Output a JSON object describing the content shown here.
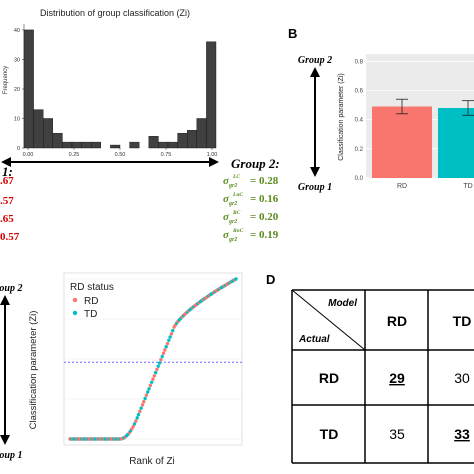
{
  "panel_letters": {
    "b": "B",
    "d": "D"
  },
  "panel_a": {
    "left_fragments": {
      "heading": "1:",
      "vals": [
        ".67",
        ".57",
        ".65",
        "0.57"
      ]
    },
    "group2": {
      "heading": "Group 2:",
      "rows": [
        {
          "sup": "LC",
          "val": "= 0.28"
        },
        {
          "sup": "LnC",
          "val": "= 0.16"
        },
        {
          "sup": "RC",
          "val": "= 0.20"
        },
        {
          "sup": "RnC",
          "val": "= 0.19"
        }
      ]
    },
    "colors": {
      "red_text": "#d40000",
      "green_text": "#5a8c1c",
      "bar": "#404040"
    }
  },
  "panel_b": {
    "group2_label": "Group 2",
    "group1_label": "Group 1",
    "colors": {
      "rd": "#f8766d",
      "td": "#00bfc4",
      "panel_bg": "#ebebeb"
    }
  },
  "panel_c": {
    "group2_label": "roup 2",
    "group1_label": "roup 1",
    "legend_title": "RD status",
    "legend_items": [
      "RD",
      "TD"
    ],
    "threshold": 0.48,
    "colors": {
      "rd": "#f8766d",
      "td": "#00bfc4",
      "threshold": "#6a6aff"
    }
  },
  "panel_d": {
    "header_model": "Model",
    "header_actual": "Actual",
    "col_labels": [
      "RD",
      "TD"
    ],
    "rows": [
      {
        "label": "RD",
        "cells": [
          "29",
          "30"
        ]
      },
      {
        "label": "TD",
        "cells": [
          "35",
          "33"
        ]
      }
    ],
    "underlined": [
      "0-0",
      "1-1"
    ]
  },
  "chart_data": [
    {
      "type": "bar",
      "title": "Distribution of group classification (Zi)",
      "xlabel": "",
      "ylabel": "Frequency",
      "categories": [
        "0.00",
        "0.05",
        "0.10",
        "0.15",
        "0.20",
        "0.25",
        "0.30",
        "0.35",
        "0.40",
        "0.45",
        "0.50",
        "0.55",
        "0.60",
        "0.65",
        "0.70",
        "0.75",
        "0.80",
        "0.85",
        "0.90",
        "0.95"
      ],
      "values": [
        40,
        13,
        10,
        5,
        2,
        2,
        2,
        2,
        0,
        1,
        0,
        2,
        0,
        4,
        2,
        2,
        5,
        6,
        10,
        36
      ],
      "xticks": [
        "0.00",
        "0.25",
        "0.50",
        "0.75",
        "1.00"
      ],
      "yticks": [
        "0",
        "10",
        "20",
        "30",
        "40"
      ],
      "ylim": [
        0,
        42
      ]
    },
    {
      "type": "bar",
      "title": "",
      "xlabel": "",
      "ylabel": "Classification parameter (Zi)",
      "categories": [
        "RD",
        "TD"
      ],
      "values": [
        0.49,
        0.48
      ],
      "errors": [
        0.05,
        0.05
      ],
      "yticks": [
        "0.0",
        "0.2",
        "0.4",
        "0.6",
        "0.8"
      ],
      "ylim": [
        0,
        0.85
      ]
    },
    {
      "type": "scatter",
      "title": "",
      "xlabel": "Rank of Zi",
      "ylabel": "Classification parameter (Zi)",
      "n_points": 127,
      "series": [
        {
          "name": "RD"
        },
        {
          "name": "TD"
        }
      ],
      "ylim": [
        0,
        1
      ],
      "threshold": 0.48
    },
    {
      "type": "table",
      "col_labels": [
        "RD",
        "TD"
      ],
      "row_labels": [
        "RD",
        "TD"
      ],
      "values": [
        [
          29,
          30
        ],
        [
          35,
          33
        ]
      ]
    }
  ]
}
